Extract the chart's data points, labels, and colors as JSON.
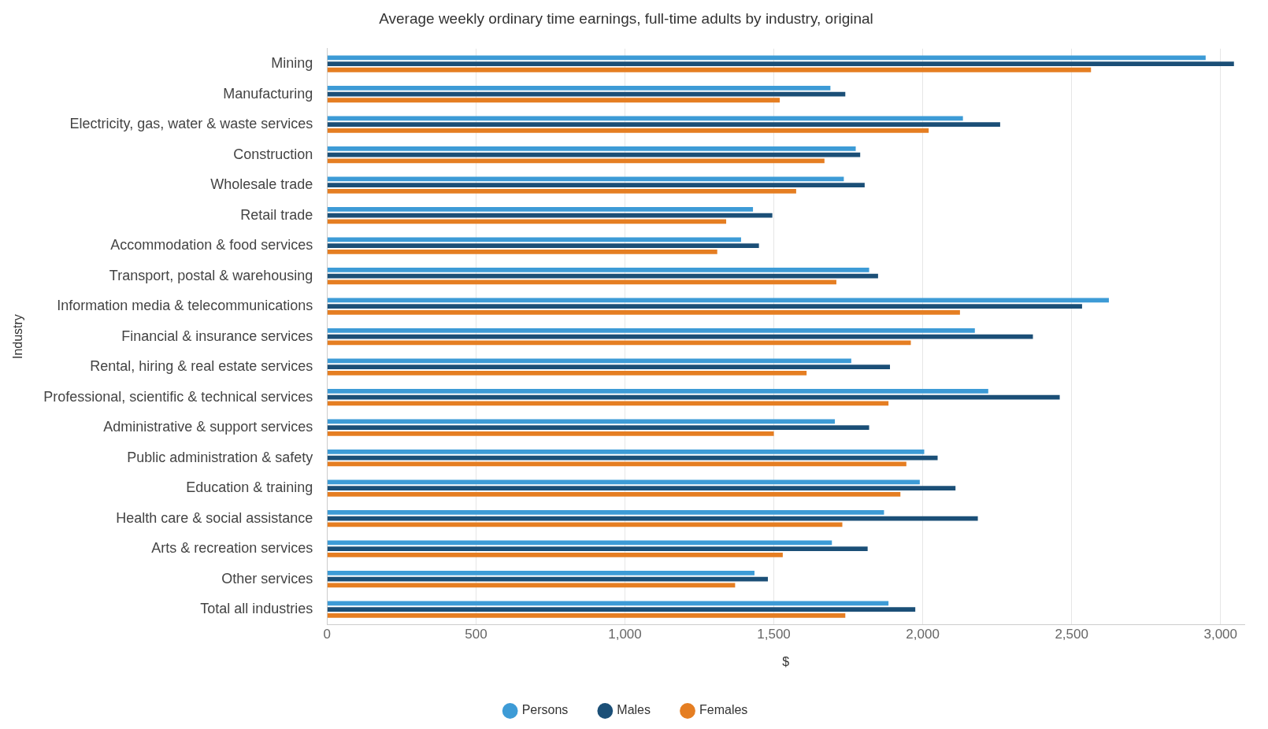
{
  "chart_data": {
    "type": "bar",
    "orientation": "horizontal",
    "title": "Average weekly ordinary time earnings, full-time adults by industry, original",
    "xlabel": "$",
    "ylabel": "Industry",
    "categories": [
      "Mining",
      "Manufacturing",
      "Electricity, gas, water & waste services",
      "Construction",
      "Wholesale trade",
      "Retail trade",
      "Accommodation & food services",
      "Transport, postal & warehousing",
      "Information media & telecommunications",
      "Financial & insurance services",
      "Rental, hiring & real estate services",
      "Professional, scientific & technical services",
      "Administrative & support services",
      "Public administration & safety",
      "Education & training",
      "Health care & social assistance",
      "Arts & recreation services",
      "Other services",
      "Total all industries"
    ],
    "series": [
      {
        "name": "Persons",
        "color": "#3d9bd6",
        "values": [
          2950,
          1690,
          2135,
          1775,
          1735,
          1430,
          1390,
          1820,
          2625,
          2175,
          1760,
          2220,
          1705,
          2005,
          1990,
          1870,
          1695,
          1435,
          1885
        ]
      },
      {
        "name": "Males",
        "color": "#1b4f77",
        "values": [
          3045,
          1740,
          2260,
          1790,
          1805,
          1495,
          1450,
          1850,
          2535,
          2370,
          1890,
          2460,
          1820,
          2050,
          2110,
          2185,
          1815,
          1480,
          1975
        ]
      },
      {
        "name": "Females",
        "color": "#e57e22",
        "values": [
          2565,
          1520,
          2020,
          1670,
          1575,
          1340,
          1310,
          1710,
          2125,
          1960,
          1610,
          1885,
          1500,
          1945,
          1925,
          1730,
          1530,
          1370,
          1740
        ]
      }
    ],
    "xlim": [
      0,
      3080
    ],
    "xticks": [
      0,
      {
        "value": 500,
        "label": "500"
      },
      {
        "value": 1000,
        "label": "1,000"
      },
      {
        "value": 1500,
        "label": "1,500"
      },
      {
        "value": 2000,
        "label": "2,000"
      },
      {
        "value": 2500,
        "label": "2,500"
      },
      {
        "value": 3000,
        "label": "3,000"
      }
    ],
    "grid": "x",
    "legend": "bottom",
    "marker": "circle"
  }
}
